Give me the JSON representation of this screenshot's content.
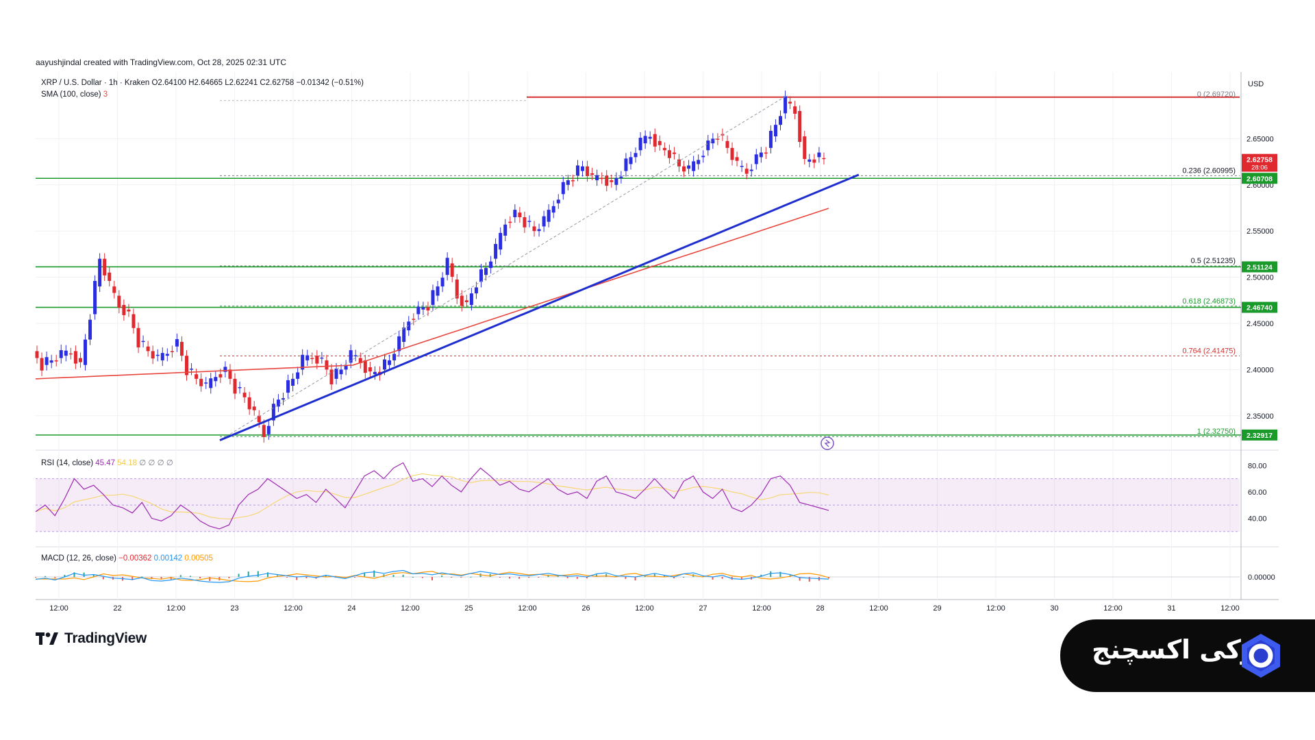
{
  "credit": "aayushjindal created with TradingView.com, Oct 28, 2025 02:31 UTC",
  "header": {
    "symbol": "XRP / U.S. Dollar · 1h · Kraken",
    "ohlc": "O2.64100  H2.64665  L2.62241  C2.62758  −0.01342 (−0.51%)",
    "sma": "SMA (100, close)",
    "sma_value": "3"
  },
  "currency": "USD",
  "colors": {
    "up": "#2a2ee0",
    "down": "#e0282f",
    "sma": "#e8453c",
    "trend": "#1f2ecf",
    "support": "#1b9a2c",
    "fib_top": "#d32f2f",
    "rsi": "#9c27b0",
    "macd": "#2196f3",
    "signal": "#ff9800"
  },
  "chart_data": [
    {
      "type": "candlestick",
      "title": "XRP / U.S. Dollar · 1h · Kraken",
      "ylim": [
        2.3,
        2.72
      ],
      "y_ticks": [
        "2.65000",
        "2.60000",
        "2.55000",
        "2.50000",
        "2.45000",
        "2.40000",
        "2.35000"
      ],
      "x_ticks": [
        "12:00",
        "22",
        "12:00",
        "23",
        "12:00",
        "24",
        "12:00",
        "25",
        "12:00",
        "26",
        "12:00",
        "27",
        "12:00",
        "28",
        "12:00",
        "29",
        "12:00",
        "30",
        "12:00",
        "31",
        "12:00"
      ],
      "close_path": [
        2.42,
        2.405,
        2.41,
        2.415,
        2.42,
        2.405,
        2.46,
        2.52,
        2.49,
        2.47,
        2.46,
        2.43,
        2.42,
        2.41,
        2.42,
        2.43,
        2.4,
        2.39,
        2.38,
        2.395,
        2.4,
        2.38,
        2.37,
        2.35,
        2.33,
        2.36,
        2.375,
        2.39,
        2.41,
        2.415,
        2.41,
        2.39,
        2.4,
        2.415,
        2.41,
        2.395,
        2.4,
        2.41,
        2.43,
        2.455,
        2.465,
        2.47,
        2.49,
        2.515,
        2.48,
        2.47,
        2.495,
        2.51,
        2.53,
        2.56,
        2.57,
        2.56,
        2.55,
        2.56,
        2.58,
        2.6,
        2.61,
        2.62,
        2.605,
        2.61,
        2.6,
        2.615,
        2.63,
        2.645,
        2.655,
        2.64,
        2.635,
        2.62,
        2.615,
        2.63,
        2.645,
        2.655,
        2.64,
        2.62,
        2.615,
        2.63,
        2.64,
        2.665,
        2.69,
        2.68,
        2.625,
        2.63,
        2.628
      ],
      "current_price": "2.62758",
      "countdown": "28:06",
      "support_levels": [
        {
          "label": "2.60708",
          "value": 2.60708
        },
        {
          "label": "2.51124",
          "value": 2.51124
        },
        {
          "label": "2.46740",
          "value": 2.4674
        },
        {
          "label": "2.32917",
          "value": 2.32917
        }
      ],
      "fib_levels": [
        {
          "label": "0 (2.69720)",
          "value": 2.6972
        },
        {
          "label": "0.236 (2.60995)",
          "value": 2.60995
        },
        {
          "label": "0.5 (2.51235)",
          "value": 2.51235
        },
        {
          "label": "0.618 (2.46873)",
          "value": 2.46873
        },
        {
          "label": "0.764 (2.41475)",
          "value": 2.41475
        },
        {
          "label": "1 (2.32750)",
          "value": 2.3275
        }
      ],
      "trendline": {
        "from": [
          23.0,
          2.325
        ],
        "to": [
          28.35,
          2.608
        ]
      },
      "sma_path": {
        "from": 2.39,
        "to": 2.575
      }
    },
    {
      "type": "line",
      "title": "RSI (14, close)",
      "legend_values": [
        "45.47",
        "54.18",
        "∅",
        "∅",
        "∅",
        "∅"
      ],
      "ylim": [
        20,
        90
      ],
      "y_ticks": [
        "80.00",
        "60.00",
        "40.00"
      ],
      "band": [
        30,
        70
      ],
      "rsi_path": [
        45,
        50,
        42,
        55,
        70,
        62,
        65,
        58,
        50,
        48,
        44,
        52,
        40,
        38,
        42,
        50,
        45,
        38,
        34,
        32,
        35,
        50,
        58,
        62,
        70,
        65,
        60,
        55,
        58,
        52,
        62,
        55,
        48,
        60,
        72,
        76,
        70,
        78,
        82,
        68,
        70,
        64,
        72,
        65,
        60,
        70,
        78,
        72,
        65,
        68,
        62,
        60,
        65,
        70,
        62,
        58,
        60,
        55,
        68,
        72,
        60,
        58,
        55,
        62,
        70,
        62,
        55,
        68,
        72,
        60,
        55,
        62,
        48,
        45,
        50,
        58,
        70,
        72,
        65,
        52,
        50,
        48,
        46
      ]
    },
    {
      "type": "bar",
      "title": "MACD (12, 26, close)",
      "legend_values": [
        "−0.00362",
        "0.00142",
        "0.00505"
      ],
      "y_ticks": [
        "0.00000"
      ]
    }
  ],
  "brand": {
    "name": "اوکی اکسچنج"
  },
  "tradingview_logo": "TradingView"
}
